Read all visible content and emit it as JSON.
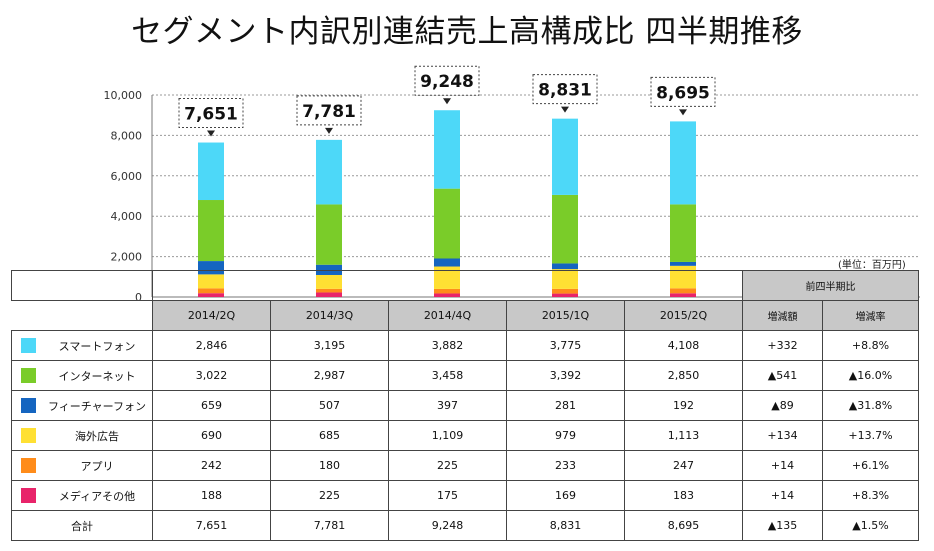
{
  "title": "セグメント内訳別連結売上高構成比 四半期推移",
  "unit_label": "(単位：百万円)",
  "colors": {
    "smartphone": "#4dd8f8",
    "internet": "#7acc29",
    "featurephone": "#1565c0",
    "overseas": "#ffe033",
    "apps": "#ff8c1a",
    "media": "#e8246a"
  },
  "chart_data": {
    "type": "bar",
    "stacked": true,
    "title": "セグメント内訳別連結売上高構成比 四半期推移",
    "categories": [
      "2014/2Q",
      "2014/3Q",
      "2014/4Q",
      "2015/1Q",
      "2015/2Q"
    ],
    "ylim": [
      0,
      10000
    ],
    "yticks": [
      "0",
      "2,000",
      "4,000",
      "6,000",
      "8,000",
      "10,000"
    ],
    "ytick_values": [
      0,
      2000,
      4000,
      6000,
      8000,
      10000
    ],
    "grid": true,
    "series": [
      {
        "name": "メディアその他",
        "key": "media",
        "values": [
          188,
          225,
          175,
          169,
          183
        ]
      },
      {
        "name": "アプリ",
        "key": "apps",
        "values": [
          242,
          180,
          225,
          233,
          247
        ]
      },
      {
        "name": "海外広告",
        "key": "overseas",
        "values": [
          690,
          685,
          1109,
          979,
          1113
        ]
      },
      {
        "name": "フィーチャーフォン",
        "key": "featurephone",
        "values": [
          659,
          507,
          397,
          281,
          192
        ]
      },
      {
        "name": "インターネット",
        "key": "internet",
        "values": [
          3022,
          2987,
          3458,
          3392,
          2850
        ]
      },
      {
        "name": "スマートフォン",
        "key": "smartphone",
        "values": [
          2846,
          3195,
          3882,
          3775,
          4108
        ]
      }
    ],
    "totals": [
      7651,
      7781,
      9248,
      8831,
      8695
    ],
    "total_labels": [
      "7,651",
      "7,781",
      "9,248",
      "8,831",
      "8,695"
    ]
  },
  "table": {
    "header_columns": [
      "2014/2Q",
      "2014/3Q",
      "2014/4Q",
      "2015/1Q",
      "2015/2Q"
    ],
    "comparison_group": "前四半期比",
    "comparison_columns": [
      "増減額",
      "増減率"
    ],
    "rows": [
      {
        "label": "スマートフォン",
        "color": "#4dd8f8",
        "values": [
          "2,846",
          "3,195",
          "3,882",
          "3,775",
          "4,108"
        ],
        "change": "+332",
        "rate": "+8.8%"
      },
      {
        "label": "インターネット",
        "color": "#7acc29",
        "values": [
          "3,022",
          "2,987",
          "3,458",
          "3,392",
          "2,850"
        ],
        "change": "▲541",
        "rate": "▲16.0%"
      },
      {
        "label": "フィーチャーフォン",
        "color": "#1565c0",
        "values": [
          "659",
          "507",
          "397",
          "281",
          "192"
        ],
        "change": "▲89",
        "rate": "▲31.8%"
      },
      {
        "label": "海外広告",
        "color": "#ffe033",
        "values": [
          "690",
          "685",
          "1,109",
          "979",
          "1,113"
        ],
        "change": "+134",
        "rate": "+13.7%"
      },
      {
        "label": "アプリ",
        "color": "#ff8c1a",
        "values": [
          "242",
          "180",
          "225",
          "233",
          "247"
        ],
        "change": "+14",
        "rate": "+6.1%"
      },
      {
        "label": "メディアその他",
        "color": "#e8246a",
        "values": [
          "188",
          "225",
          "175",
          "169",
          "183"
        ],
        "change": "+14",
        "rate": "+8.3%"
      }
    ],
    "total": {
      "label": "合計",
      "values": [
        "7,651",
        "7,781",
        "9,248",
        "8,831",
        "8,695"
      ],
      "change": "▲135",
      "rate": "▲1.5%"
    }
  }
}
